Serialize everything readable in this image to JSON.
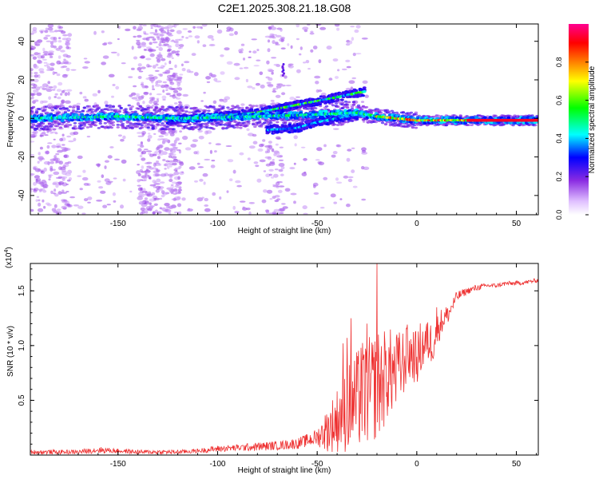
{
  "figure_title": "C2E1.2025.308.21.18.G08",
  "chart_data": [
    {
      "type": "heatmap",
      "title": "C2E1.2025.308.21.18.G08",
      "xlabel": "Height of straight line (km)",
      "ylabel": "Frequency (Hz)",
      "xlim": [
        -194,
        61
      ],
      "ylim": [
        -50,
        49
      ],
      "xticks": [
        -150,
        -100,
        -50,
        0,
        50
      ],
      "xtick_labels": [
        "-150",
        "-100",
        "-50",
        "0",
        "50"
      ],
      "yticks": [
        -40,
        -20,
        0,
        20,
        40
      ],
      "ytick_labels": [
        "-40",
        "-20",
        "0",
        "20",
        "40"
      ],
      "colorbar": {
        "label": "Normalized spectral amplitude",
        "range": [
          0,
          1
        ],
        "ticks": [
          0.0,
          0.2,
          0.4,
          0.6,
          0.8
        ],
        "tick_labels": [
          "0.0",
          "0.2",
          "0.4",
          "0.6",
          "0.8"
        ],
        "colormap": [
          "#ffffff",
          "#8a2be2",
          "#0000ff",
          "#00ffff",
          "#00ff00",
          "#ffff00",
          "#ff8000",
          "#ff0000",
          "#ff00a0"
        ]
      },
      "features": [
        {
          "name": "carrier",
          "points": [
            [
              -194,
              0
            ],
            [
              -150,
              1
            ],
            [
              -120,
              0
            ],
            [
              -80,
              1
            ],
            [
              -50,
              2
            ],
            [
              -30,
              3
            ],
            [
              -20,
              1
            ],
            [
              0,
              -1
            ],
            [
              20,
              -1
            ],
            [
              40,
              -1
            ],
            [
              61,
              -1
            ]
          ],
          "peak_amplitude": 1.0
        },
        {
          "name": "upper-branch",
          "points": [
            [
              -125,
              -1
            ],
            [
              -100,
              1
            ],
            [
              -80,
              3
            ],
            [
              -60,
              7
            ],
            [
              -40,
              11
            ],
            [
              -26,
              14
            ]
          ],
          "peak_amplitude": 0.6
        },
        {
          "name": "lower-branch",
          "points": [
            [
              -75,
              -6
            ],
            [
              -60,
              -5
            ],
            [
              -50,
              -2
            ],
            [
              -40,
              0
            ],
            [
              -30,
              2
            ]
          ],
          "peak_amplitude": 0.4
        },
        {
          "name": "spike",
          "points": [
            [
              -67,
              25
            ]
          ],
          "peak_amplitude": 0.2
        }
      ]
    },
    {
      "type": "line",
      "xlabel": "Height of straight line (km)",
      "ylabel": "SNR (10 * v/v)",
      "scale_note": "(x10",
      "scale_exponent": "4",
      "scale_close": ")",
      "xlim": [
        -194,
        61
      ],
      "ylim": [
        0,
        1.75
      ],
      "xticks": [
        -150,
        -100,
        -50,
        0,
        50
      ],
      "xtick_labels": [
        "-150",
        "-100",
        "-50",
        "0",
        "50"
      ],
      "yticks": [
        0.5,
        1.0,
        1.5
      ],
      "ytick_labels": [
        "0.5",
        "1.0",
        "1.5"
      ],
      "series": [
        {
          "name": "SNR",
          "color": "#ee3030",
          "x": [
            -194,
            -180,
            -170,
            -160,
            -150,
            -140,
            -130,
            -120,
            -110,
            -100,
            -90,
            -80,
            -70,
            -60,
            -55,
            -50,
            -45,
            -40,
            -38,
            -35,
            -32,
            -30,
            -28,
            -25,
            -22,
            -20,
            -18,
            -16,
            -14,
            -12,
            -10,
            -8,
            -6,
            -4,
            -2,
            0,
            2,
            5,
            8,
            10,
            13,
            16,
            20,
            25,
            30,
            35,
            40,
            45,
            50,
            55,
            61
          ],
          "values": [
            0.03,
            0.03,
            0.03,
            0.05,
            0.04,
            0.03,
            0.03,
            0.03,
            0.04,
            0.06,
            0.07,
            0.08,
            0.09,
            0.11,
            0.14,
            0.17,
            0.25,
            0.35,
            0.42,
            0.45,
            0.5,
            0.55,
            0.6,
            0.62,
            0.65,
            0.7,
            0.72,
            0.75,
            0.8,
            0.8,
            0.78,
            0.85,
            0.9,
            0.95,
            0.95,
            0.9,
            1.0,
            1.05,
            1.05,
            1.15,
            1.25,
            1.3,
            1.45,
            1.5,
            1.53,
            1.55,
            1.55,
            1.57,
            1.57,
            1.58,
            1.6
          ],
          "noise": [
            0.02,
            0.02,
            0.02,
            0.03,
            0.02,
            0.02,
            0.02,
            0.02,
            0.02,
            0.03,
            0.03,
            0.04,
            0.04,
            0.05,
            0.06,
            0.08,
            0.2,
            0.3,
            0.35,
            0.4,
            0.45,
            0.45,
            0.5,
            0.5,
            0.5,
            0.5,
            0.5,
            0.45,
            0.4,
            0.4,
            0.35,
            0.35,
            0.3,
            0.3,
            0.25,
            0.25,
            0.25,
            0.2,
            0.2,
            0.15,
            0.12,
            0.08,
            0.05,
            0.03,
            0.03,
            0.02,
            0.02,
            0.02,
            0.02,
            0.02,
            0.02
          ],
          "spikes": [
            [
              -20,
              1.75
            ],
            [
              -35,
              1.07
            ],
            [
              -33,
              1.25
            ],
            [
              -37,
              1.02
            ],
            [
              -28,
              0.98
            ],
            [
              -25,
              1.2
            ],
            [
              -10,
              1.1
            ],
            [
              -5,
              1.15
            ],
            [
              5,
              1.2
            ],
            [
              10,
              1.35
            ]
          ]
        }
      ]
    }
  ]
}
